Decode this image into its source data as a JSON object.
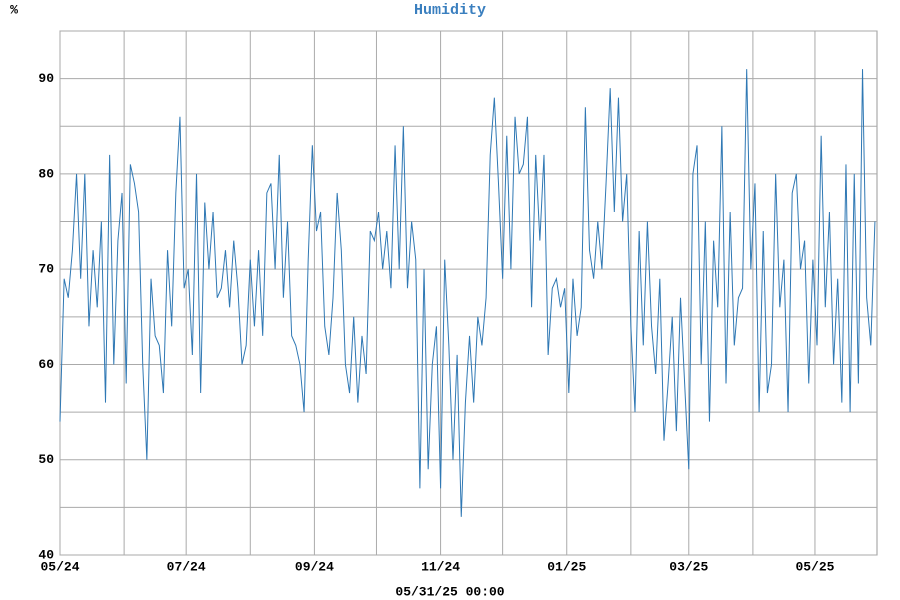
{
  "chart_data": {
    "type": "line",
    "title": "Humidity",
    "ylabel": "%",
    "xlabel": "05/31/25 00:00",
    "xlim": [
      0,
      395
    ],
    "ylim": [
      40,
      95
    ],
    "xticks": [
      {
        "value": 0,
        "label": "05/24"
      },
      {
        "value": 61,
        "label": "07/24"
      },
      {
        "value": 123,
        "label": "09/24"
      },
      {
        "value": 184,
        "label": "11/24"
      },
      {
        "value": 245,
        "label": "01/25"
      },
      {
        "value": 304,
        "label": "03/25"
      },
      {
        "value": 365,
        "label": "05/25"
      }
    ],
    "xminor": [
      31,
      92,
      153,
      214,
      276,
      335
    ],
    "yticks": [
      40,
      50,
      60,
      70,
      80,
      90
    ],
    "yminor": [
      45,
      55,
      65,
      75,
      85,
      95
    ],
    "grid": true,
    "x": [
      0,
      2,
      4,
      6,
      8,
      10,
      12,
      14,
      16,
      18,
      20,
      22,
      24,
      26,
      28,
      30,
      32,
      34,
      36,
      38,
      40,
      42,
      44,
      46,
      48,
      50,
      52,
      54,
      56,
      58,
      60,
      62,
      64,
      66,
      68,
      70,
      72,
      74,
      76,
      78,
      80,
      82,
      84,
      86,
      88,
      90,
      92,
      94,
      96,
      98,
      100,
      102,
      104,
      106,
      108,
      110,
      112,
      114,
      116,
      118,
      120,
      122,
      124,
      126,
      128,
      130,
      132,
      134,
      136,
      138,
      140,
      142,
      144,
      146,
      148,
      150,
      152,
      154,
      156,
      158,
      160,
      162,
      164,
      166,
      168,
      170,
      172,
      174,
      176,
      178,
      180,
      182,
      184,
      186,
      188,
      190,
      192,
      194,
      196,
      198,
      200,
      202,
      204,
      206,
      208,
      210,
      212,
      214,
      216,
      218,
      220,
      222,
      224,
      226,
      228,
      230,
      232,
      234,
      236,
      238,
      240,
      242,
      244,
      246,
      248,
      250,
      252,
      254,
      256,
      258,
      260,
      262,
      264,
      266,
      268,
      270,
      272,
      274,
      276,
      278,
      280,
      282,
      284,
      286,
      288,
      290,
      292,
      294,
      296,
      298,
      300,
      302,
      304,
      306,
      308,
      310,
      312,
      314,
      316,
      318,
      320,
      322,
      324,
      326,
      328,
      330,
      332,
      334,
      336,
      338,
      340,
      342,
      344,
      346,
      348,
      350,
      352,
      354,
      356,
      358,
      360,
      362,
      364,
      366,
      368,
      370,
      372,
      374,
      376,
      378,
      380,
      382,
      384,
      386,
      388,
      390,
      392,
      394
    ],
    "series": [
      {
        "name": "Humidity",
        "color": "#2f78b4",
        "values": [
          54,
          69,
          67,
          72,
          80,
          69,
          80,
          64,
          72,
          66,
          75,
          56,
          82,
          60,
          73,
          78,
          58,
          81,
          79,
          76,
          60,
          50,
          69,
          63,
          62,
          57,
          72,
          64,
          78,
          86,
          68,
          70,
          61,
          80,
          57,
          77,
          70,
          76,
          67,
          68,
          72,
          66,
          73,
          68,
          60,
          62,
          71,
          64,
          72,
          63,
          78,
          79,
          70,
          82,
          67,
          75,
          63,
          62,
          60,
          55,
          71,
          83,
          74,
          76,
          64,
          61,
          67,
          78,
          72,
          60,
          57,
          65,
          56,
          63,
          59,
          74,
          73,
          76,
          70,
          74,
          68,
          83,
          70,
          85,
          68,
          75,
          71,
          47,
          70,
          49,
          60,
          64,
          47,
          71,
          62,
          50,
          61,
          44,
          56,
          63,
          56,
          65,
          62,
          67,
          82,
          88,
          79,
          69,
          84,
          70,
          86,
          80,
          81,
          86,
          66,
          82,
          73,
          82,
          61,
          68,
          69,
          66,
          68,
          57,
          69,
          63,
          66,
          87,
          72,
          69,
          75,
          70,
          79,
          89,
          76,
          88,
          75,
          80,
          64,
          55,
          74,
          62,
          75,
          64,
          59,
          69,
          52,
          58,
          65,
          53,
          67,
          58,
          49,
          80,
          83,
          60,
          75,
          54,
          73,
          66,
          85,
          58,
          76,
          62,
          67,
          68,
          91,
          70,
          79,
          55,
          74,
          57,
          60,
          80,
          66,
          71,
          55,
          78,
          80,
          70,
          73,
          58,
          71,
          62,
          84,
          66,
          76,
          60,
          69,
          56,
          81,
          55,
          80,
          58,
          91,
          67,
          62,
          75
        ]
      }
    ]
  }
}
